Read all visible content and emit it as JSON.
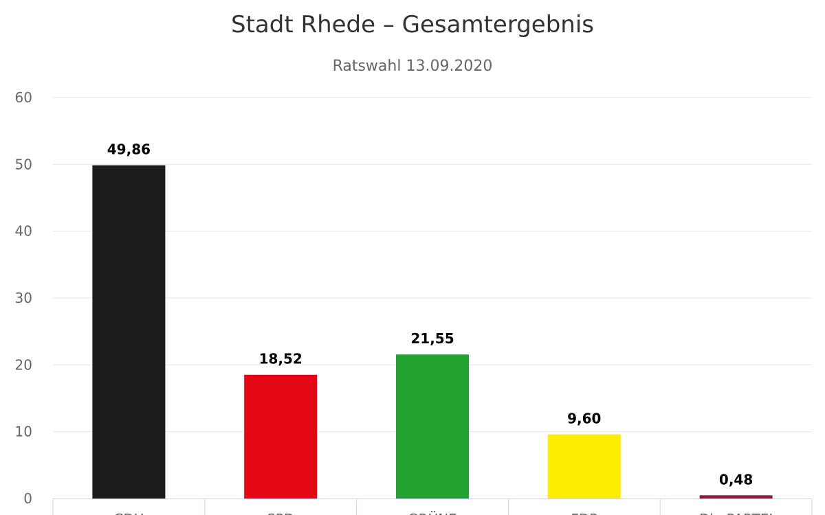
{
  "chart_data": {
    "type": "bar",
    "title": "Stadt Rhede – Gesamtergebnis",
    "subtitle": "Ratswahl 13.09.2020",
    "categories": [
      "CDU",
      "SPD",
      "GRÜNE",
      "FDP",
      "Die PARTEI"
    ],
    "values": [
      49.86,
      18.52,
      21.55,
      9.6,
      0.48
    ],
    "data_labels": [
      "49,86",
      "18,52",
      "21,55",
      "9,60",
      "0,48"
    ],
    "colors": [
      "#1c1c1c",
      "#e30613",
      "#22a12e",
      "#ffed00",
      "#8b1a3c"
    ],
    "ylim": [
      0,
      60
    ],
    "yticks": [
      0,
      10,
      20,
      30,
      40,
      50,
      60
    ],
    "xlabel": "",
    "ylabel": "",
    "grid": true,
    "legend": "none"
  }
}
